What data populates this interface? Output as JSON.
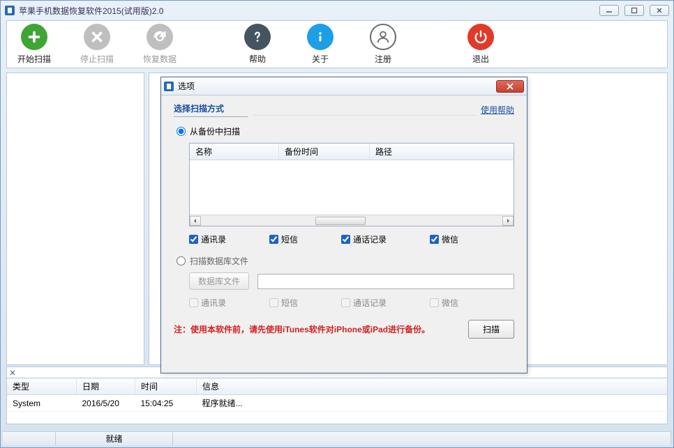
{
  "window": {
    "title": "苹果手机数据恢复软件2015(试用版)2.0"
  },
  "toolbar": {
    "items": [
      {
        "name": "开始扫描",
        "enabled": true,
        "color": "#3fa535",
        "icon": "plus"
      },
      {
        "name": "停止扫描",
        "enabled": false,
        "color": "#bfbfbf",
        "icon": "x"
      },
      {
        "name": "恢复数据",
        "enabled": false,
        "color": "#bfbfbf",
        "icon": "refresh"
      },
      {
        "name": "帮助",
        "enabled": true,
        "color": "#455560",
        "icon": "question"
      },
      {
        "name": "关于",
        "enabled": true,
        "color": "#1d9fe6",
        "icon": "info"
      },
      {
        "name": "注册",
        "enabled": true,
        "color": "#6b6b6b",
        "icon": "user",
        "outline": true
      },
      {
        "name": "退出",
        "enabled": true,
        "color": "#e13a2a",
        "icon": "power"
      }
    ]
  },
  "log": {
    "columns": [
      "类型",
      "日期",
      "时间",
      "信息"
    ],
    "rows": [
      [
        "System",
        "2016/5/20",
        "15:04:25",
        "程序就绪..."
      ]
    ]
  },
  "status": {
    "text": "就绪"
  },
  "dialog": {
    "title": "选项",
    "header": "选择扫描方式",
    "help": "使用帮助",
    "option1": {
      "label": "从备份中扫描",
      "columns": [
        "名称",
        "备份时间",
        "路径"
      ],
      "checks": [
        "通讯录",
        "短信",
        "通话记录",
        "微信"
      ]
    },
    "option2": {
      "label": "扫描数据库文件",
      "db_button": "数据库文件",
      "checks": [
        "通讯录",
        "短信",
        "通话记录",
        "微信"
      ]
    },
    "warning": "注：使用本软件前，请先使用iTunes软件对iPhone或iPad进行备份。",
    "scan": "扫描"
  },
  "colors": {
    "chrome_border": "#7a9abf",
    "panel_border": "#b9c9db",
    "link": "#1a4ea0",
    "warn": "#d42020",
    "close_btn": "#c6412f"
  }
}
